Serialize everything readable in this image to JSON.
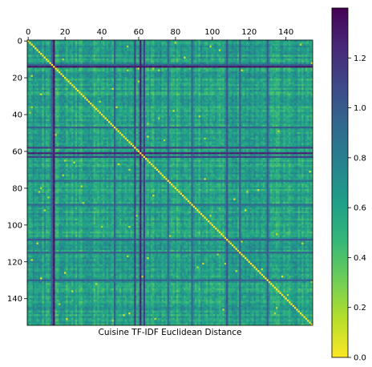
{
  "chart_data": {
    "type": "heatmap",
    "title": "",
    "xlabel": "Cuisine TF-IDF Euclidean Distance",
    "ylabel": "",
    "n": 155,
    "x_ticks": [
      "0",
      "20",
      "40",
      "60",
      "80",
      "100",
      "120",
      "140"
    ],
    "y_ticks": [
      "0",
      "20",
      "40",
      "60",
      "80",
      "100",
      "120",
      "140"
    ],
    "x_tick_values": [
      0,
      20,
      40,
      60,
      80,
      100,
      120,
      140
    ],
    "y_tick_values": [
      0,
      20,
      40,
      60,
      80,
      100,
      120,
      140
    ],
    "x_axis_position": "top",
    "colormap": "viridis_r",
    "colorbar": {
      "min": 0.0,
      "max": 1.4,
      "ticks": [
        "0.0",
        "0.2",
        "0.4",
        "0.6",
        "0.8",
        "1.0",
        "1.2"
      ],
      "tick_values": [
        0.0,
        0.2,
        0.4,
        0.6,
        0.8,
        1.0,
        1.2
      ]
    },
    "diagonal_value": 0.0,
    "typical_value_range": [
      0.4,
      0.8
    ],
    "high_distance_rows": [
      {
        "index": 14,
        "value": 1.35
      },
      {
        "index": 58,
        "value": 1.15
      },
      {
        "index": 61,
        "value": 1.3
      },
      {
        "index": 63,
        "value": 1.15
      },
      {
        "index": 108,
        "value": 1.05
      },
      {
        "index": 130,
        "value": 1.0
      },
      {
        "index": 47,
        "value": 1.0
      },
      {
        "index": 89,
        "value": 0.95
      },
      {
        "index": 115,
        "value": 1.0
      },
      {
        "index": 13,
        "value": 1.0
      },
      {
        "index": 76,
        "value": 0.95
      }
    ],
    "grid": false
  },
  "colors": {
    "viridis": [
      "#440154",
      "#482878",
      "#3e4989",
      "#31688e",
      "#26828e",
      "#1f9e89",
      "#35b779",
      "#6ece58",
      "#b5de2b",
      "#fde725"
    ]
  }
}
